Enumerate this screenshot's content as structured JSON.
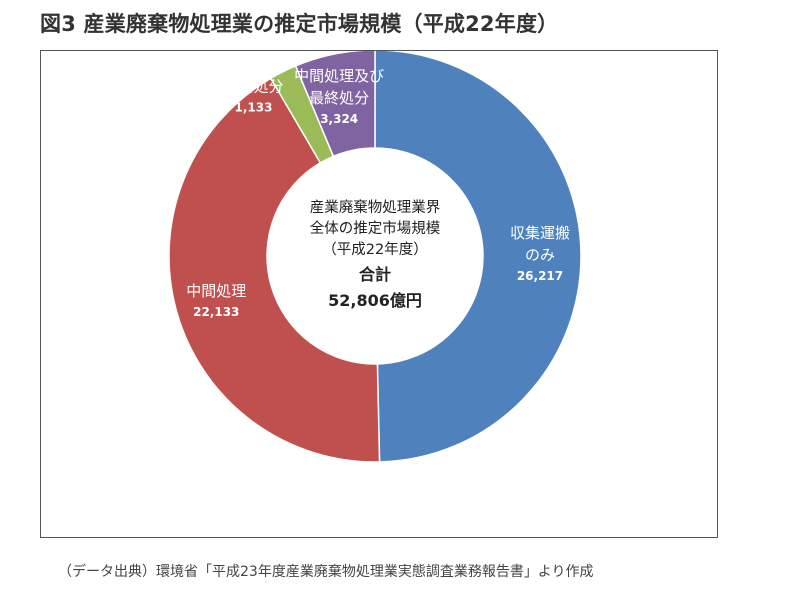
{
  "title": "図3 産業廃棄物処理業の推定市場規模（平成22年度）",
  "source": "（データ出典）環境省「平成23年度産業廃棄物処理業実態調査業務報告書」より作成",
  "chart_data": {
    "type": "pie",
    "style": "donut",
    "unit": "億円",
    "slices": [
      {
        "name": "収集運搬のみ",
        "label_lines": [
          "収集運搬",
          "のみ"
        ],
        "value_label": "26,217",
        "value": 26217,
        "color": "#4F81BD"
      },
      {
        "name": "中間処理",
        "label_lines": [
          "中間処理"
        ],
        "value_label": "22,133",
        "value": 22133,
        "color": "#C0504D"
      },
      {
        "name": "最終処分",
        "label_lines": [
          "最終処分"
        ],
        "value_label": "1,133",
        "value": 1133,
        "color": "#9BBB59"
      },
      {
        "name": "中間処理及び最終処分",
        "label_lines": [
          "中間処理及び",
          "最終処分"
        ],
        "value_label": "3,324",
        "value": 3324,
        "color": "#8064A2"
      }
    ],
    "center": {
      "lines": [
        "産業廃棄物処理業界",
        "全体の推定市場規模",
        "（平成22年度）"
      ],
      "total_heading": "合計",
      "total_text": "52,806億円",
      "total_value": 52806
    }
  }
}
